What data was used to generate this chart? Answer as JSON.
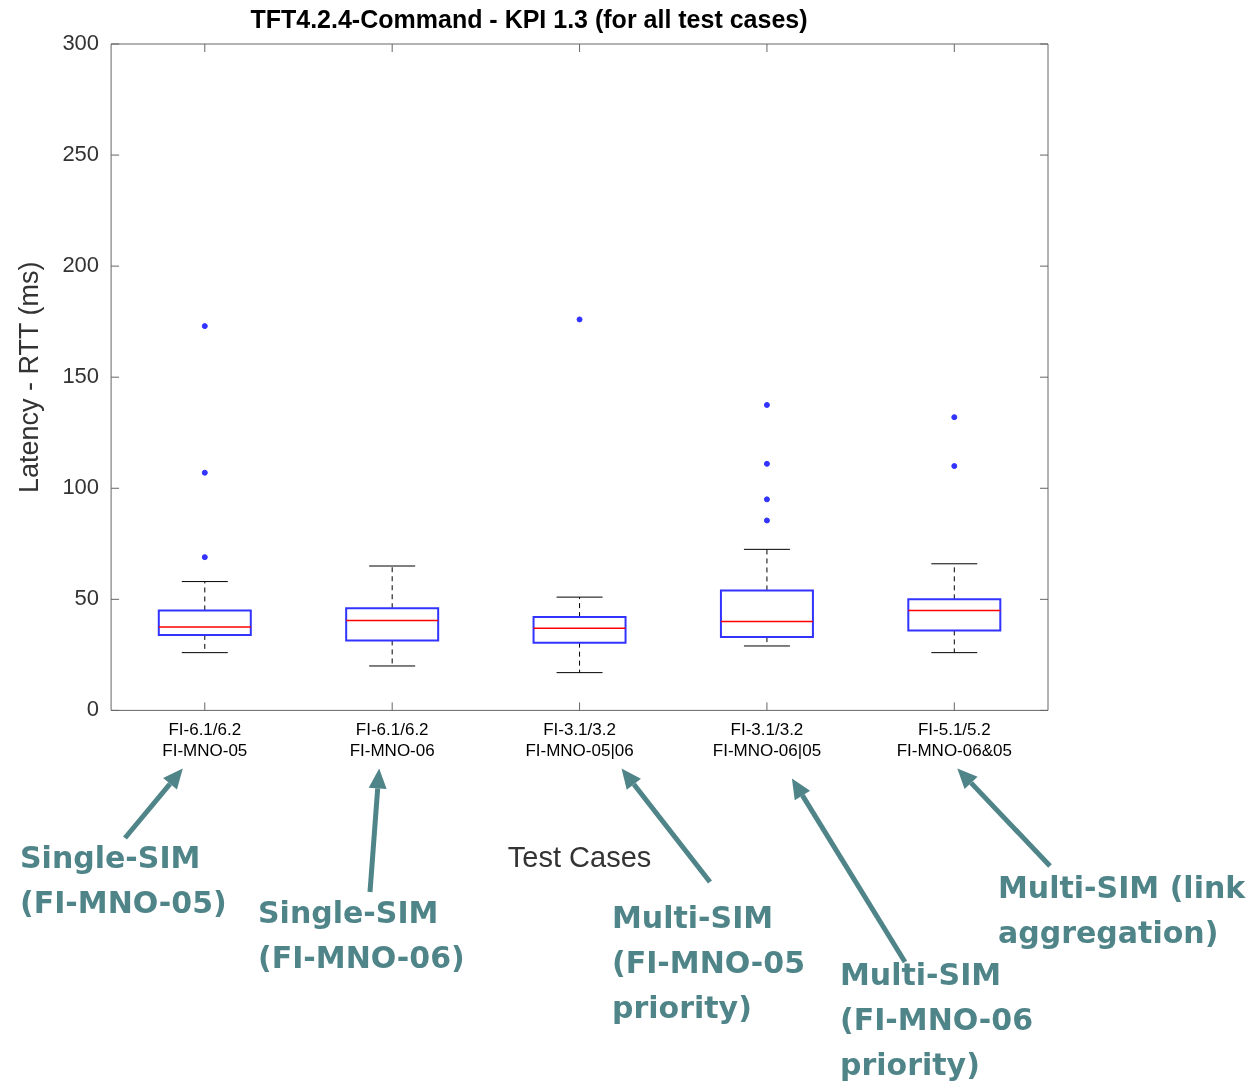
{
  "chart_data": {
    "type": "box",
    "title": "TFT4.2.4-Command - KPI 1.3 (for all test cases)",
    "xlabel": "Test Cases",
    "ylabel": "Latency - RTT (ms)",
    "categories": [
      "FI-6.1/6.2\nFI-MNO-05",
      "FI-6.1/6.2\nFI-MNO-06",
      "FI-3.1/3.2\nFI-MNO-05|06",
      "FI-3.1/3.2\nFI-MNO-06|05",
      "FI-5.1/5.2\nFI-MNO-06&05"
    ],
    "boxes": [
      {
        "low": 26,
        "q1": 34,
        "median": 37.5,
        "q3": 45,
        "high": 58,
        "outliers": [
          69,
          107,
          173
        ]
      },
      {
        "low": 20,
        "q1": 31.5,
        "median": 40.5,
        "q3": 46,
        "high": 65
      },
      {
        "low": 17,
        "q1": 30.5,
        "median": 37,
        "q3": 42,
        "high": 51,
        "outliers": [
          176
        ]
      },
      {
        "low": 29,
        "q1": 33,
        "median": 40,
        "q3": 54,
        "high": 72.5,
        "outliers": [
          85.5,
          95,
          111,
          137.5
        ]
      },
      {
        "low": 26,
        "q1": 36,
        "median": 45,
        "q3": 50,
        "high": 66,
        "outliers": [
          110,
          132
        ]
      }
    ],
    "color": "#3333ff",
    "ylim": [
      0,
      300
    ],
    "yticks": [
      0,
      50,
      100,
      150,
      200,
      250,
      300
    ],
    "grid": false,
    "annotations": [
      "Single-SIM (FI-MNO-05)",
      "Single-SIM (FI-MNO-06)",
      "Multi-SIM (FI-MNO-05 priority)",
      "Multi-SIM (FI-MNO-06 priority)",
      "Multi-SIM (link aggregation)"
    ]
  }
}
